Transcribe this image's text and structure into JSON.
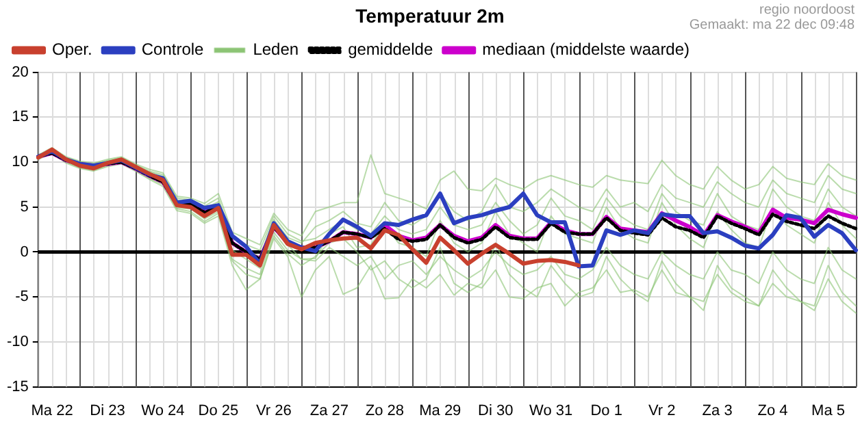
{
  "chart_data": {
    "type": "line",
    "title": "Temperatuur 2m",
    "annotations": [
      "regio noordoost",
      "Gemaakt: ma 22 dec 09:48"
    ],
    "categories": [
      null,
      "Ma 22",
      null,
      null,
      null,
      "Di 23",
      null,
      null,
      null,
      "Wo 24",
      null,
      null,
      null,
      "Do 25",
      null,
      null,
      null,
      "Vr 26",
      null,
      null,
      null,
      "Za 27",
      null,
      null,
      null,
      "Zo 28",
      null,
      null,
      null,
      "Ma 29",
      null,
      null,
      null,
      "Di 30",
      null,
      null,
      null,
      "Wo 31",
      null,
      null,
      null,
      "Do 1",
      null,
      null,
      null,
      "Vr 2",
      null,
      null,
      null,
      "Za 3",
      null,
      null,
      null,
      "Zo 4",
      null,
      null,
      null,
      "Ma 5",
      null,
      null
    ],
    "ylim": [
      -15,
      20
    ],
    "yticks": [
      -15,
      -10,
      -5,
      0,
      5,
      10,
      15,
      20
    ],
    "grid": true,
    "legend": "top left",
    "marker": "none",
    "ref_lines": [
      {
        "axis": "y",
        "value": 0,
        "color": "#000000"
      }
    ],
    "series": [
      {
        "name": "Oper.",
        "color": "#c8402e",
        "line_style": "solid",
        "values": [
          10.5,
          11.4,
          10.3,
          9.6,
          9.3,
          9.9,
          10.3,
          9.5,
          8.7,
          8.0,
          5.2,
          5.0,
          4.0,
          4.9,
          -0.3,
          -0.3,
          -1.5,
          3.0,
          0.9,
          0.3,
          1.0,
          1.3,
          1.5,
          1.6,
          0.4,
          2.4,
          1.9,
          0.3,
          -1.2,
          1.6,
          0.2,
          -1.3,
          -0.2,
          0.8,
          -0.2,
          -1.3,
          -1.0,
          -0.9,
          -1.1,
          -1.5,
          null,
          null,
          null,
          null,
          null,
          null,
          null,
          null,
          null,
          null,
          null,
          null,
          null,
          null,
          null,
          null,
          null,
          null,
          null,
          null
        ]
      },
      {
        "name": "Controle",
        "color": "#2b3fc0",
        "line_style": "solid",
        "values": [
          10.6,
          11.2,
          10.3,
          9.8,
          9.6,
          9.9,
          10.2,
          9.4,
          8.6,
          8.2,
          5.5,
          5.7,
          4.9,
          5.2,
          1.8,
          0.6,
          -1.3,
          3.2,
          1.2,
          0.5,
          0.1,
          2.0,
          3.6,
          2.8,
          1.8,
          3.2,
          3.0,
          3.6,
          4.1,
          6.5,
          3.2,
          3.8,
          4.1,
          4.6,
          5.0,
          6.5,
          4.1,
          3.3,
          3.3,
          -1.6,
          -1.5,
          2.4,
          1.9,
          2.4,
          2.1,
          4.2,
          4.0,
          4.0,
          2.1,
          2.3,
          1.6,
          0.7,
          0.4,
          1.9,
          4.1,
          3.8,
          1.7,
          3.0,
          2.1,
          0.2
        ]
      },
      {
        "name": "Leden",
        "color": "#8cc474",
        "line_style": "solid",
        "values": [
          10.8,
          11.6,
          10.6,
          10.1,
          9.9,
          10.3,
          10.6,
          9.8,
          9.2,
          8.8,
          6.2,
          6.0,
          5.4,
          6.5,
          2.2,
          1.5,
          0.8,
          4.3,
          2.5,
          1.8,
          4.5,
          5.0,
          5.5,
          5.5,
          10.8,
          6.5,
          6.0,
          5.5,
          4.8,
          8.0,
          9.0,
          7.0,
          6.8,
          8.2,
          7.5,
          7.0,
          8.0,
          8.5,
          8.0,
          7.5,
          7.2,
          8.5,
          8.0,
          7.8,
          7.6,
          10.2,
          8.5,
          7.5,
          7.0,
          9.5,
          8.0,
          7.0,
          7.5,
          9.5,
          8.2,
          7.8,
          7.5,
          9.8,
          8.5,
          8.0
        ]
      },
      {
        "name": "gemiddelde",
        "color": "#000000",
        "line_style": "dotted",
        "values": [
          10.6,
          11.0,
          10.2,
          9.8,
          9.6,
          9.8,
          10.0,
          9.3,
          8.5,
          7.8,
          5.3,
          5.3,
          4.4,
          5.0,
          1.0,
          0.0,
          -0.8,
          2.8,
          1.0,
          0.5,
          0.5,
          1.2,
          2.2,
          2.0,
          1.6,
          2.6,
          1.4,
          1.2,
          1.4,
          3.0,
          1.6,
          1.0,
          1.4,
          2.8,
          1.6,
          1.4,
          1.4,
          3.2,
          2.2,
          2.0,
          2.0,
          3.8,
          2.4,
          2.1,
          1.9,
          3.8,
          2.8,
          2.4,
          1.6,
          4.0,
          3.2,
          2.6,
          1.9,
          4.2,
          3.4,
          3.0,
          2.6,
          4.0,
          3.2,
          2.6
        ]
      },
      {
        "name": "mediaan (middelste waarde)",
        "color": "#cc00cc",
        "line_style": "solid",
        "values": [
          10.6,
          11.0,
          10.2,
          9.8,
          9.6,
          9.8,
          10.0,
          9.3,
          8.5,
          7.8,
          5.3,
          5.3,
          4.4,
          5.0,
          1.0,
          0.0,
          -0.8,
          2.8,
          1.0,
          0.5,
          0.5,
          1.2,
          2.2,
          2.0,
          1.6,
          3.0,
          1.8,
          1.3,
          1.6,
          3.0,
          1.8,
          1.2,
          1.6,
          3.0,
          1.8,
          1.5,
          1.5,
          3.3,
          2.4,
          2.0,
          2.0,
          3.9,
          2.6,
          2.4,
          2.2,
          4.3,
          3.5,
          2.8,
          1.8,
          4.1,
          3.4,
          2.8,
          2.1,
          4.7,
          3.8,
          3.6,
          3.2,
          4.7,
          4.2,
          3.8
        ]
      },
      {
        "color": "#8cc474",
        "line_style": "solid",
        "values": [
          10.3,
          11.0,
          9.9,
          9.3,
          9.0,
          9.5,
          9.8,
          9.0,
          8.1,
          7.3,
          4.6,
          4.3,
          3.2,
          4.0,
          -1.5,
          -4.2,
          -3.0,
          1.5,
          -0.5,
          -5.0,
          -2.0,
          -0.5,
          -4.7,
          -4.0,
          -1.5,
          -5.2,
          -5.1,
          -3.0,
          -4.0,
          -2.5,
          -4.8,
          -3.5,
          -4.0,
          -2.0,
          -5.0,
          -5.2,
          -4.0,
          -3.5,
          -6.0,
          -4.5,
          -4.0,
          -2.0,
          -4.5,
          -4.2,
          -5.0,
          -2.0,
          -4.5,
          -5.0,
          -5.5,
          -2.5,
          -4.5,
          -5.5,
          -6.0,
          -3.5,
          -5.0,
          -5.5,
          -6.5,
          -3.0,
          -5.5,
          -6.8
        ]
      },
      {
        "color": "#8cc474",
        "line_style": "solid",
        "values": [
          10.6,
          11.3,
          10.4,
          9.9,
          9.7,
          10.1,
          10.4,
          9.6,
          8.9,
          8.4,
          5.8,
          5.6,
          4.8,
          5.6,
          0.8,
          0.2,
          -0.5,
          3.6,
          1.6,
          1.0,
          2.8,
          3.5,
          4.5,
          3.2,
          2.8,
          5.5,
          3.5,
          3.0,
          4.0,
          6.5,
          4.5,
          3.5,
          4.5,
          7.5,
          5.0,
          4.5,
          5.5,
          7.0,
          6.0,
          5.0,
          4.5,
          7.0,
          5.0,
          5.5,
          4.5,
          7.5,
          6.0,
          5.5,
          5.0,
          7.8,
          6.5,
          5.5,
          5.0,
          8.0,
          6.5,
          6.0,
          5.5,
          8.5,
          7.0,
          6.5
        ]
      },
      {
        "color": "#8cc474",
        "line_style": "solid",
        "values": [
          10.4,
          11.1,
          10.1,
          9.5,
          9.3,
          9.7,
          10.0,
          9.2,
          8.3,
          7.6,
          4.9,
          4.8,
          3.7,
          4.5,
          -0.8,
          -1.8,
          -2.5,
          2.2,
          0.2,
          -0.8,
          -1.0,
          0.5,
          -0.5,
          -1.5,
          -0.5,
          -3.0,
          -1.5,
          -1.0,
          -2.5,
          -0.5,
          -2.0,
          -3.0,
          -2.0,
          0.0,
          -1.5,
          -2.5,
          -2.0,
          -0.5,
          -2.5,
          -3.0,
          -2.0,
          0.5,
          -1.5,
          -2.5,
          -3.0,
          0.0,
          -1.5,
          -2.5,
          -3.0,
          0.0,
          -2.0,
          -2.5,
          -3.5,
          0.0,
          -2.0,
          -3.0,
          -3.5,
          0.5,
          -2.0,
          -3.0
        ]
      },
      {
        "color": "#8cc474",
        "line_style": "solid",
        "values": [
          10.5,
          11.2,
          10.2,
          9.7,
          9.5,
          9.9,
          10.2,
          9.4,
          8.6,
          8.0,
          5.4,
          5.2,
          4.2,
          5.2,
          0.2,
          -0.8,
          -1.8,
          2.8,
          0.8,
          -0.8,
          -0.7,
          2.0,
          2.8,
          0.5,
          0.8,
          3.0,
          1.0,
          0.5,
          -0.5,
          3.5,
          1.0,
          0.0,
          1.0,
          4.5,
          2.0,
          1.0,
          0.0,
          4.0,
          2.0,
          1.5,
          1.0,
          5.0,
          2.5,
          1.5,
          1.0,
          5.5,
          3.0,
          1.5,
          0.5,
          4.5,
          2.5,
          1.0,
          0.5,
          5.0,
          3.0,
          2.0,
          1.0,
          5.5,
          3.0,
          1.5
        ]
      },
      {
        "color": "#8cc474",
        "line_style": "solid",
        "values": [
          10.7,
          11.4,
          10.5,
          10.0,
          9.8,
          10.2,
          10.5,
          9.7,
          9.0,
          8.6,
          6.0,
          5.8,
          5.1,
          6.0,
          1.5,
          0.8,
          0.2,
          4.0,
          2.0,
          1.2,
          1.5,
          2.5,
          3.5,
          2.5,
          2.0,
          4.0,
          2.5,
          2.0,
          2.5,
          5.0,
          3.0,
          2.5,
          3.0,
          5.5,
          3.5,
          2.0,
          3.0,
          6.0,
          4.0,
          3.5,
          2.5,
          6.0,
          4.0,
          3.0,
          2.5,
          6.5,
          4.5,
          3.5,
          3.0,
          6.5,
          4.0,
          3.0,
          2.5,
          7.0,
          5.0,
          4.0,
          3.5,
          7.0,
          5.0,
          4.0
        ]
      },
      {
        "color": "#8cc474",
        "line_style": "solid",
        "values": [
          10.4,
          11.0,
          10.0,
          9.4,
          9.1,
          9.6,
          9.9,
          9.1,
          8.2,
          7.5,
          4.8,
          4.5,
          3.4,
          4.3,
          -1.0,
          -2.5,
          -3.0,
          1.8,
          -0.2,
          -1.5,
          -0.5,
          1.0,
          1.5,
          0.0,
          -2.0,
          -1.0,
          -3.0,
          -4.0,
          -3.0,
          0.5,
          -3.5,
          -4.5,
          -3.5,
          1.0,
          -2.5,
          -4.0,
          -5.0,
          -1.5,
          -3.5,
          -5.0,
          -4.5,
          -0.5,
          -3.0,
          -4.5,
          -5.5,
          -1.0,
          -3.5,
          -5.0,
          -6.5,
          -1.5,
          -4.0,
          -5.0,
          -6.0,
          -2.0,
          -4.0,
          -5.5,
          -6.0,
          -1.5,
          -4.5,
          -6.0
        ]
      }
    ]
  }
}
